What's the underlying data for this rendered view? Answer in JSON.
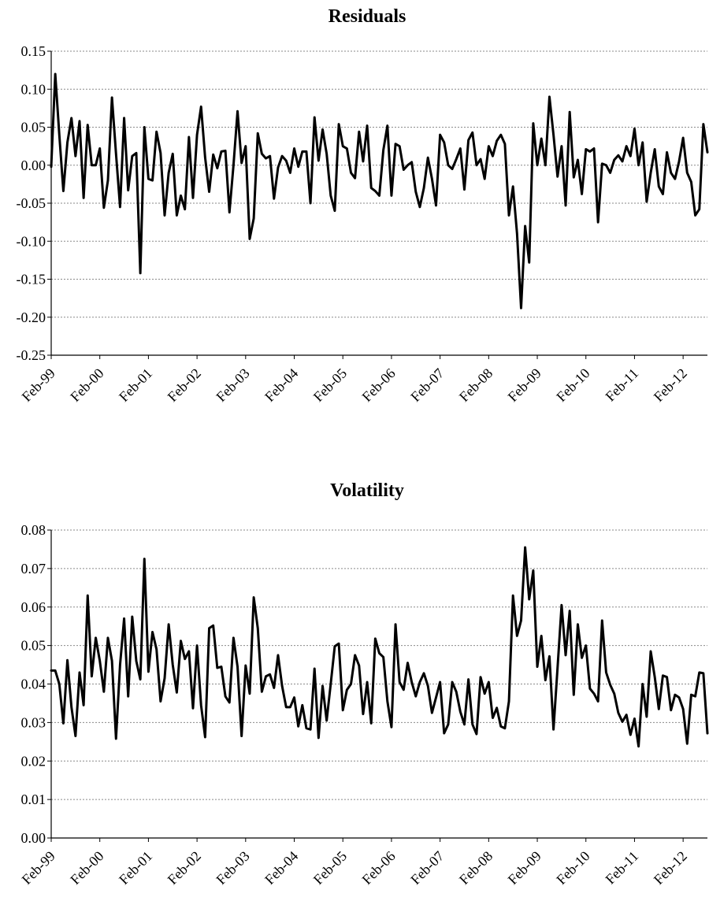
{
  "chart_data": [
    {
      "type": "line",
      "title": "Residuals",
      "ylim": [
        -0.25,
        0.15
      ],
      "y_ticks": [
        "-0.25",
        "-0.20",
        "-0.15",
        "-0.10",
        "-0.05",
        "0.00",
        "0.05",
        "0.10",
        "0.15"
      ],
      "x_ticks": [
        "Feb-99",
        "Feb-00",
        "Feb-01",
        "Feb-02",
        "Feb-03",
        "Feb-04",
        "Feb-05",
        "Feb-06",
        "Feb-07",
        "Feb-08",
        "Feb-09",
        "Feb-10",
        "Feb-11",
        "Feb-12"
      ],
      "grid": "horizontal",
      "line_color": "#000000",
      "series": [
        {
          "start": "Feb-99",
          "frequency": "monthly",
          "values": [
            -0.002,
            0.12,
            0.04,
            -0.034,
            0.03,
            0.062,
            0.012,
            0.058,
            -0.043,
            0.053,
            0.0,
            0.0,
            0.022,
            -0.056,
            -0.02,
            0.089,
            0.015,
            -0.055,
            0.062,
            -0.033,
            0.012,
            0.016,
            -0.142,
            0.05,
            -0.018,
            -0.02,
            0.044,
            0.016,
            -0.066,
            -0.01,
            0.015,
            -0.066,
            -0.04,
            -0.058,
            0.037,
            -0.043,
            0.04,
            0.077,
            0.01,
            -0.035,
            0.014,
            -0.004,
            0.018,
            0.019,
            -0.062,
            0.0,
            0.071,
            0.003,
            0.025,
            -0.097,
            -0.07,
            0.042,
            0.015,
            0.009,
            0.012,
            -0.044,
            -0.003,
            0.012,
            0.006,
            -0.01,
            0.022,
            -0.002,
            0.018,
            0.018,
            -0.05,
            0.063,
            0.006,
            0.047,
            0.015,
            -0.04,
            -0.06,
            0.054,
            0.025,
            0.022,
            -0.01,
            -0.017,
            0.044,
            0.005,
            0.052,
            -0.03,
            -0.034,
            -0.04,
            0.02,
            0.052,
            -0.04,
            0.028,
            0.025,
            -0.006,
            0.0,
            0.004,
            -0.035,
            -0.055,
            -0.03,
            0.01,
            -0.018,
            -0.053,
            0.04,
            0.03,
            0.0,
            -0.005,
            0.008,
            0.022,
            -0.032,
            0.033,
            0.043,
            0.0,
            0.008,
            -0.018,
            0.025,
            0.012,
            0.032,
            0.04,
            0.028,
            -0.066,
            -0.028,
            -0.09,
            -0.188,
            -0.08,
            -0.128,
            0.055,
            0.0,
            0.035,
            0.0,
            0.09,
            0.04,
            -0.015,
            0.025,
            -0.053,
            0.07,
            -0.016,
            0.007,
            -0.038,
            0.021,
            0.018,
            0.022,
            -0.075,
            0.002,
            0.0,
            -0.01,
            0.007,
            0.013,
            0.005,
            0.025,
            0.012,
            0.048,
            0.0,
            0.03,
            -0.048,
            -0.01,
            0.021,
            -0.028,
            -0.038,
            0.017,
            -0.01,
            -0.018,
            0.005,
            0.036,
            -0.01,
            -0.022,
            -0.066,
            -0.058,
            0.054,
            0.017
          ]
        }
      ]
    },
    {
      "type": "line",
      "title": "Volatility",
      "ylim": [
        0.0,
        0.08
      ],
      "y_ticks": [
        "0.00",
        "0.01",
        "0.02",
        "0.03",
        "0.04",
        "0.05",
        "0.06",
        "0.07",
        "0.08"
      ],
      "x_ticks": [
        "Feb-99",
        "Feb-00",
        "Feb-01",
        "Feb-02",
        "Feb-03",
        "Feb-04",
        "Feb-05",
        "Feb-06",
        "Feb-07",
        "Feb-08",
        "Feb-09",
        "Feb-10",
        "Feb-11",
        "Feb-12"
      ],
      "grid": "horizontal",
      "line_color": "#000000",
      "series": [
        {
          "start": "Feb-99",
          "frequency": "monthly",
          "values": [
            0.0435,
            0.0435,
            0.04,
            0.0298,
            0.0462,
            0.034,
            0.0265,
            0.043,
            0.0345,
            0.063,
            0.042,
            0.052,
            0.046,
            0.038,
            0.052,
            0.046,
            0.0258,
            0.045,
            0.057,
            0.0368,
            0.0575,
            0.046,
            0.0412,
            0.0725,
            0.0432,
            0.0535,
            0.049,
            0.0355,
            0.0415,
            0.0555,
            0.045,
            0.0378,
            0.0512,
            0.0465,
            0.0485,
            0.0337,
            0.05,
            0.0345,
            0.0262,
            0.0545,
            0.0552,
            0.0442,
            0.0445,
            0.0368,
            0.0352,
            0.052,
            0.0445,
            0.0265,
            0.0448,
            0.0375,
            0.0625,
            0.0545,
            0.038,
            0.042,
            0.0425,
            0.039,
            0.0475,
            0.0395,
            0.034,
            0.034,
            0.0365,
            0.029,
            0.0345,
            0.0285,
            0.0282,
            0.044,
            0.026,
            0.0395,
            0.0305,
            0.04,
            0.0498,
            0.0505,
            0.0332,
            0.0385,
            0.04,
            0.0475,
            0.0448,
            0.0322,
            0.0405,
            0.0298,
            0.0518,
            0.048,
            0.047,
            0.0355,
            0.0288,
            0.0555,
            0.0405,
            0.0385,
            0.0455,
            0.0405,
            0.0368,
            0.0405,
            0.0428,
            0.0395,
            0.0325,
            0.0365,
            0.0405,
            0.0272,
            0.0295,
            0.0405,
            0.038,
            0.0328,
            0.0295,
            0.0412,
            0.0295,
            0.027,
            0.0418,
            0.0375,
            0.0405,
            0.0312,
            0.0338,
            0.029,
            0.0285,
            0.0355,
            0.063,
            0.0525,
            0.0565,
            0.0755,
            0.062,
            0.0695,
            0.0445,
            0.0525,
            0.041,
            0.0472,
            0.0282,
            0.0442,
            0.0605,
            0.0475,
            0.059,
            0.0372,
            0.0555,
            0.0468,
            0.05,
            0.0388,
            0.0375,
            0.0355,
            0.0565,
            0.043,
            0.0398,
            0.0375,
            0.0325,
            0.0302,
            0.032,
            0.0268,
            0.031,
            0.0238,
            0.04,
            0.0315,
            0.0485,
            0.0418,
            0.0335,
            0.0422,
            0.0418,
            0.0332,
            0.0372,
            0.0365,
            0.0335,
            0.0245,
            0.0372,
            0.0368,
            0.043,
            0.0428,
            0.0272
          ]
        }
      ]
    }
  ]
}
